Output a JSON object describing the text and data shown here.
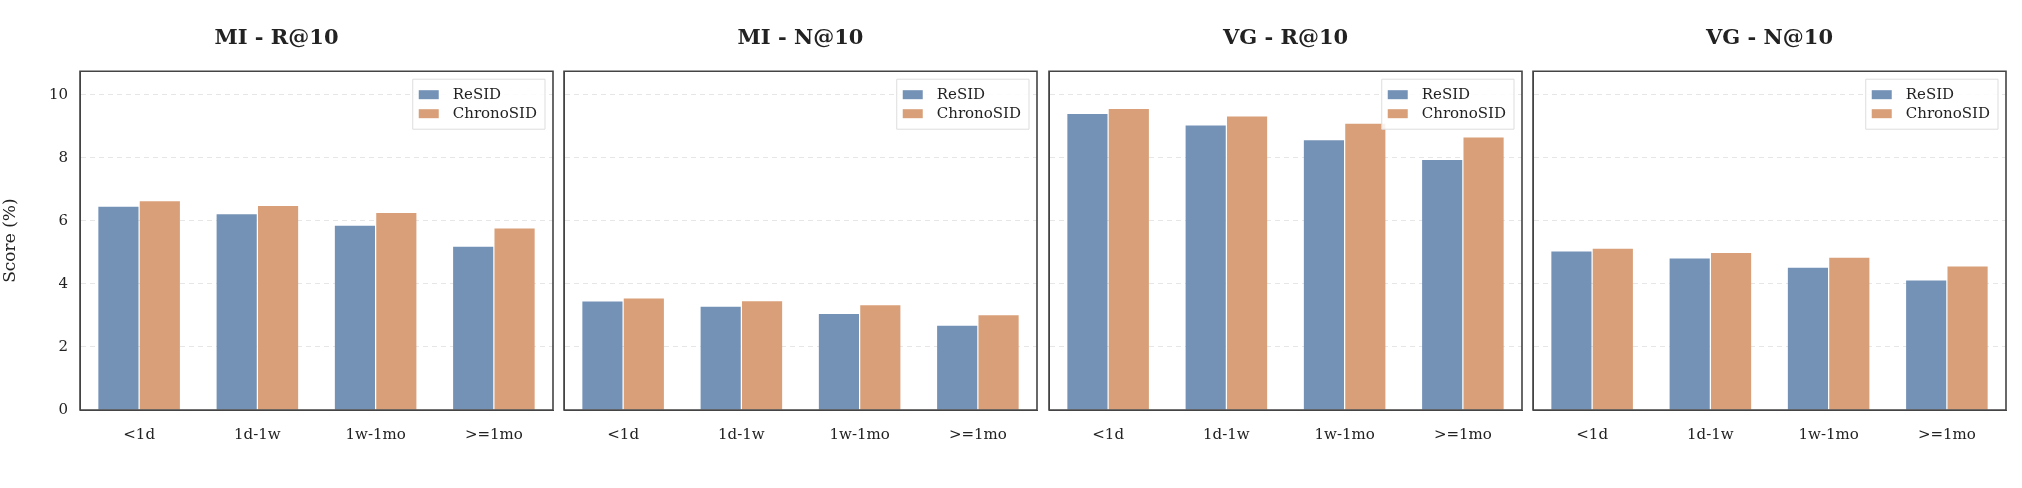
{
  "chart_data": [
    {
      "type": "bar",
      "title": "MI - R@10",
      "ylabel": "Score (%)",
      "categories": [
        "<1d",
        "1d-1w",
        "1w-1mo",
        ">=1mo"
      ],
      "series": [
        {
          "name": "ReSID",
          "color": "#7492b6",
          "values": [
            6.45,
            6.21,
            5.85,
            5.18
          ]
        },
        {
          "name": "ChronoSID",
          "color": "#d89f78",
          "values": [
            6.62,
            6.47,
            6.25,
            5.76
          ]
        }
      ],
      "ylim": [
        0,
        10.75
      ],
      "yticks": [
        0,
        2,
        4,
        6,
        8,
        10
      ],
      "grid": "y",
      "legend": "top right"
    },
    {
      "type": "bar",
      "title": "MI - N@10",
      "categories": [
        "<1d",
        "1d-1w",
        "1w-1mo",
        ">=1mo"
      ],
      "series": [
        {
          "name": "ReSID",
          "color": "#7492b6",
          "values": [
            3.44,
            3.28,
            3.05,
            2.67
          ]
        },
        {
          "name": "ChronoSID",
          "color": "#d89f78",
          "values": [
            3.54,
            3.45,
            3.32,
            3.01
          ]
        }
      ],
      "ylim": [
        0,
        10.75
      ],
      "yticks": [
        0,
        2,
        4,
        6,
        8,
        10
      ],
      "grid": "y",
      "legend": "top right",
      "tick_labels": "x"
    },
    {
      "type": "bar",
      "title": "VG - R@10",
      "categories": [
        "<1d",
        "1d-1w",
        "1w-1mo",
        ">=1mo"
      ],
      "series": [
        {
          "name": "ReSID",
          "color": "#7492b6",
          "values": [
            9.39,
            9.03,
            8.56,
            7.93
          ]
        },
        {
          "name": "ChronoSID",
          "color": "#d89f78",
          "values": [
            9.55,
            9.31,
            9.08,
            8.65
          ]
        }
      ],
      "ylim": [
        0,
        10.75
      ],
      "yticks": [
        0,
        2,
        4,
        6,
        8,
        10
      ],
      "grid": "y",
      "legend": "top right",
      "tick_labels": "x"
    },
    {
      "type": "bar",
      "title": "VG - N@10",
      "categories": [
        "<1d",
        "1d-1w",
        "1w-1mo",
        ">=1mo"
      ],
      "series": [
        {
          "name": "ReSID",
          "color": "#7492b6",
          "values": [
            5.03,
            4.81,
            4.51,
            4.11
          ]
        },
        {
          "name": "ChronoSID",
          "color": "#d89f78",
          "values": [
            5.12,
            4.98,
            4.83,
            4.55
          ]
        }
      ],
      "ylim": [
        0,
        10.75
      ],
      "yticks": [
        0,
        2,
        4,
        6,
        8,
        10
      ],
      "grid": "y",
      "legend": "top right",
      "tick_labels": "x"
    }
  ]
}
